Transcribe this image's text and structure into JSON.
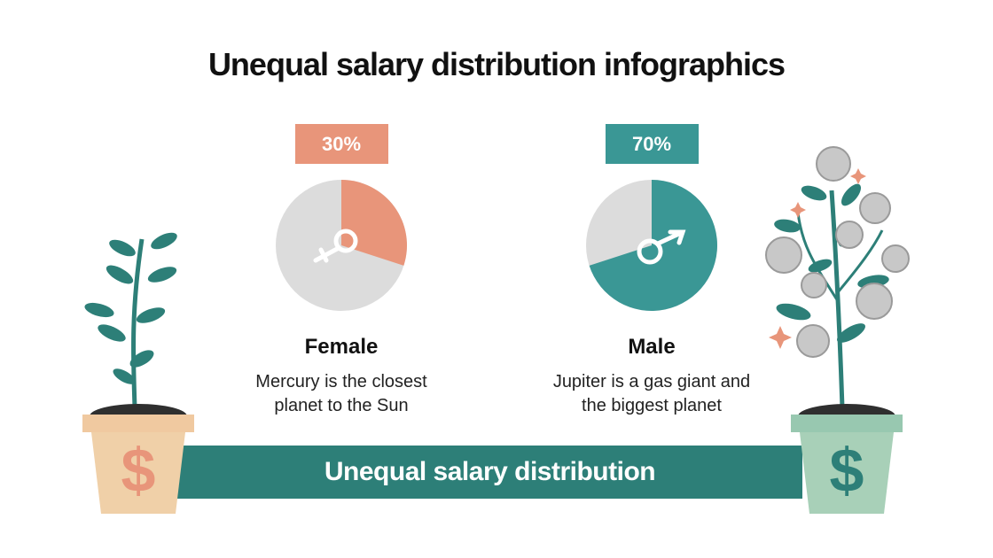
{
  "title": "Unequal salary distribution infographics",
  "banner": "Unequal salary distribution",
  "chart_data": [
    {
      "type": "pie",
      "title": "Female",
      "description": "Mercury is the closest planet to the Sun",
      "values": [
        30
      ],
      "value_labels": [
        "30%"
      ],
      "color": "#e8957a"
    },
    {
      "type": "pie",
      "title": "Male",
      "description": "Jupiter is a gas giant and the biggest planet",
      "values": [
        70
      ],
      "value_labels": [
        "70%"
      ],
      "color": "#3a9795"
    }
  ]
}
